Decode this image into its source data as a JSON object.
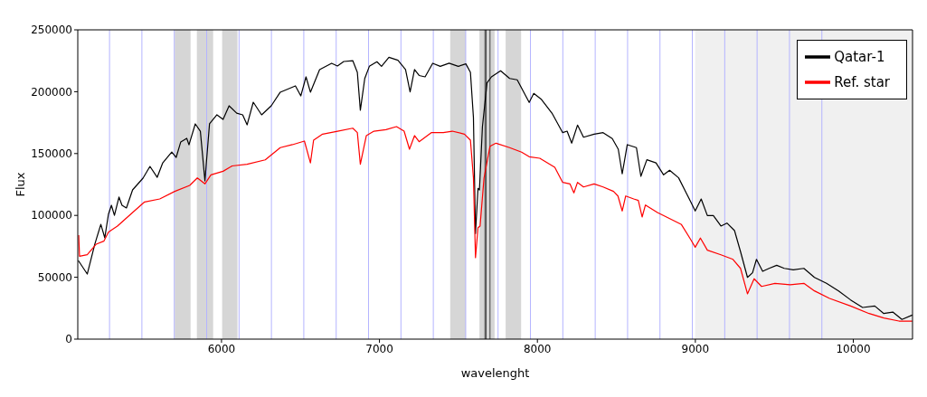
{
  "chart_data": {
    "type": "line",
    "xlabel": "wavelenght",
    "ylabel": "Flux",
    "xlim": [
      5090,
      10375
    ],
    "xticks": [
      6000,
      7000,
      8000,
      9000,
      10000
    ],
    "ylim": [
      0,
      250000
    ],
    "yticks": [
      0,
      50000,
      100000,
      150000,
      200000,
      250000
    ],
    "legend": "top right",
    "series": [
      {
        "name": "Qatar-1",
        "color": "#000000",
        "x": [
          5093,
          5150,
          5198,
          5236,
          5261,
          5284,
          5303,
          5322,
          5351,
          5370,
          5398,
          5437,
          5503,
          5547,
          5593,
          5628,
          5685,
          5713,
          5742,
          5780,
          5794,
          5834,
          5866,
          5895,
          5924,
          5971,
          6010,
          6048,
          6096,
          6134,
          6162,
          6201,
          6254,
          6315,
          6372,
          6468,
          6502,
          6535,
          6563,
          6621,
          6697,
          6734,
          6774,
          6831,
          6860,
          6879,
          6907,
          6936,
          6984,
          7013,
          7060,
          7117,
          7165,
          7194,
          7222,
          7251,
          7289,
          7337,
          7385,
          7441,
          7499,
          7547,
          7576,
          7595,
          7608,
          7624,
          7633,
          7652,
          7681,
          7709,
          7767,
          7824,
          7872,
          7948,
          7977,
          8026,
          8092,
          8160,
          8188,
          8217,
          8254,
          8292,
          8359,
          8416,
          8474,
          8512,
          8537,
          8569,
          8627,
          8655,
          8693,
          8751,
          8799,
          8837,
          8894,
          8942,
          8971,
          8999,
          9037,
          9076,
          9114,
          9162,
          9200,
          9248,
          9286,
          9330,
          9362,
          9387,
          9426,
          9467,
          9515,
          9563,
          9620,
          9687,
          9754,
          9830,
          9907,
          9983,
          10059,
          10136,
          10193,
          10250,
          10308,
          10374
        ],
        "values": [
          63600,
          52600,
          76800,
          92800,
          81900,
          100900,
          108200,
          100100,
          114800,
          108200,
          106000,
          120600,
          130100,
          139600,
          130800,
          142500,
          151300,
          146900,
          159400,
          162300,
          157100,
          174000,
          168100,
          127900,
          174000,
          181300,
          177600,
          188600,
          182700,
          181300,
          173200,
          191500,
          181300,
          188600,
          199600,
          204700,
          196600,
          212000,
          199600,
          217800,
          223000,
          220800,
          224400,
          225100,
          215600,
          185000,
          210700,
          220500,
          224200,
          220500,
          227800,
          225400,
          218000,
          199800,
          218000,
          213100,
          212000,
          223000,
          220500,
          223000,
          220500,
          222500,
          215600,
          179100,
          85300,
          121900,
          120600,
          171800,
          207100,
          212000,
          216900,
          210700,
          209600,
          191300,
          198600,
          193700,
          182700,
          166900,
          168100,
          158400,
          173000,
          163200,
          165700,
          166900,
          162100,
          153500,
          133600,
          157200,
          154800,
          131600,
          145000,
          142500,
          132800,
          136500,
          130400,
          118200,
          110900,
          103600,
          113300,
          99900,
          99900,
          91400,
          93800,
          87700,
          70700,
          49900,
          53600,
          64500,
          54800,
          57200,
          59700,
          57200,
          56000,
          57200,
          49900,
          45100,
          39000,
          31700,
          25600,
          26800,
          20700,
          21900,
          15900,
          19500
        ]
      },
      {
        "name": "Ref.  star",
        "color": "#ff0000",
        "x": [
          5096,
          5101,
          5150,
          5207,
          5255,
          5284,
          5341,
          5437,
          5513,
          5609,
          5704,
          5799,
          5847,
          5895,
          5933,
          6010,
          6067,
          6162,
          6277,
          6372,
          6449,
          6525,
          6563,
          6583,
          6640,
          6735,
          6831,
          6860,
          6879,
          6917,
          6965,
          7041,
          7108,
          7156,
          7190,
          7222,
          7251,
          7328,
          7404,
          7461,
          7538,
          7576,
          7595,
          7608,
          7624,
          7637,
          7662,
          7700,
          7738,
          7824,
          7900,
          7948,
          8015,
          8110,
          8160,
          8206,
          8231,
          8254,
          8292,
          8359,
          8416,
          8482,
          8510,
          8537,
          8559,
          8610,
          8639,
          8663,
          8684,
          8760,
          8855,
          8912,
          8971,
          8999,
          9032,
          9076,
          9162,
          9238,
          9286,
          9330,
          9372,
          9419,
          9504,
          9600,
          9687,
          9754,
          9850,
          9983,
          10100,
          10193,
          10289,
          10374
        ],
        "values": [
          84000,
          67000,
          68200,
          76800,
          79200,
          86500,
          91400,
          102300,
          110900,
          113300,
          119400,
          124300,
          130300,
          125500,
          132800,
          135700,
          140000,
          141300,
          144900,
          154800,
          157200,
          160100,
          142500,
          160800,
          165700,
          168100,
          170500,
          166900,
          141300,
          164500,
          168100,
          169300,
          171800,
          168100,
          153500,
          164500,
          159600,
          166900,
          166900,
          168100,
          165700,
          160800,
          130300,
          65800,
          90100,
          91400,
          130300,
          155900,
          158400,
          154800,
          151100,
          147400,
          146200,
          138900,
          126700,
          125500,
          118200,
          126700,
          123000,
          125500,
          123000,
          119400,
          115700,
          103600,
          115700,
          113300,
          112100,
          98700,
          108400,
          102300,
          96300,
          92600,
          80400,
          74300,
          81700,
          71900,
          68200,
          64500,
          57200,
          36600,
          48800,
          42600,
          45100,
          43900,
          45100,
          39000,
          32900,
          26800,
          20700,
          17100,
          14600,
          14600
        ]
      }
    ],
    "ref_lines": [
      {
        "axis": "x",
        "value": 5291,
        "color": "#b4b4ff"
      },
      {
        "axis": "x",
        "value": 5496,
        "color": "#b4b4ff"
      },
      {
        "axis": "x",
        "value": 5701,
        "color": "#b4b4ff"
      },
      {
        "axis": "x",
        "value": 5906,
        "color": "#b4b4ff"
      },
      {
        "axis": "x",
        "value": 6111,
        "color": "#b4b4ff"
      },
      {
        "axis": "x",
        "value": 6316,
        "color": "#b4b4ff"
      },
      {
        "axis": "x",
        "value": 6521,
        "color": "#b4b4ff"
      },
      {
        "axis": "x",
        "value": 6726,
        "color": "#b4b4ff"
      },
      {
        "axis": "x",
        "value": 6931,
        "color": "#b4b4ff"
      },
      {
        "axis": "x",
        "value": 7136,
        "color": "#b4b4ff"
      },
      {
        "axis": "x",
        "value": 7341,
        "color": "#b4b4ff"
      },
      {
        "axis": "x",
        "value": 7546,
        "color": "#b4b4ff"
      },
      {
        "axis": "x",
        "value": 7751,
        "color": "#b4b4ff"
      },
      {
        "axis": "x",
        "value": 7956,
        "color": "#b4b4ff"
      },
      {
        "axis": "x",
        "value": 8161,
        "color": "#b4b4ff"
      },
      {
        "axis": "x",
        "value": 8366,
        "color": "#b4b4ff"
      },
      {
        "axis": "x",
        "value": 8571,
        "color": "#b4b4ff"
      },
      {
        "axis": "x",
        "value": 8776,
        "color": "#b4b4ff"
      },
      {
        "axis": "x",
        "value": 8981,
        "color": "#b4b4ff"
      },
      {
        "axis": "x",
        "value": 9186,
        "color": "#b4b4ff"
      },
      {
        "axis": "x",
        "value": 9391,
        "color": "#b4b4ff"
      },
      {
        "axis": "x",
        "value": 9596,
        "color": "#b4b4ff"
      },
      {
        "axis": "x",
        "value": 9801,
        "color": "#b4b4ff"
      },
      {
        "axis": "x",
        "value": 7668,
        "color": "#444444"
      },
      {
        "axis": "x",
        "value": 7675,
        "color": "#444444"
      },
      {
        "axis": "x",
        "value": 7700,
        "color": "#444444"
      }
    ],
    "bands": [
      {
        "axis": "x",
        "from": 5704,
        "to": 5804,
        "color": "#d6d6d6"
      },
      {
        "axis": "x",
        "from": 5844,
        "to": 5947,
        "color": "#d6d6d6"
      },
      {
        "axis": "x",
        "from": 6004,
        "to": 6101,
        "color": "#d6d6d6"
      },
      {
        "axis": "x",
        "from": 7448,
        "to": 7547,
        "color": "#d6d6d6"
      },
      {
        "axis": "x",
        "from": 7633,
        "to": 7729,
        "color": "#d6d6d6"
      },
      {
        "axis": "x",
        "from": 7799,
        "to": 7897,
        "color": "#d6d6d6"
      },
      {
        "axis": "x",
        "from": 8999,
        "to": 10375,
        "color": "#f0f0f0"
      }
    ]
  }
}
